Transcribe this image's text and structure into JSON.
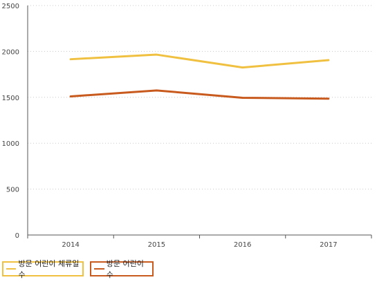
{
  "chart_data": {
    "type": "line",
    "categories": [
      "2014",
      "2015",
      "2016",
      "2017"
    ],
    "series": [
      {
        "name": "방문 어린이 체류일수",
        "values": [
          1915,
          1965,
          1825,
          1905
        ],
        "color": "#f0c040"
      },
      {
        "name": "방문 어린이 수",
        "values": [
          1510,
          1575,
          1495,
          1485
        ],
        "color": "#c85a1e"
      }
    ],
    "ylim": [
      0,
      2500
    ],
    "yticks": [
      "0",
      "500",
      "1000",
      "1500",
      "2000",
      "2500"
    ],
    "grid": true,
    "legend_position": "bottom-left",
    "title": "",
    "xlabel": "",
    "ylabel": ""
  }
}
